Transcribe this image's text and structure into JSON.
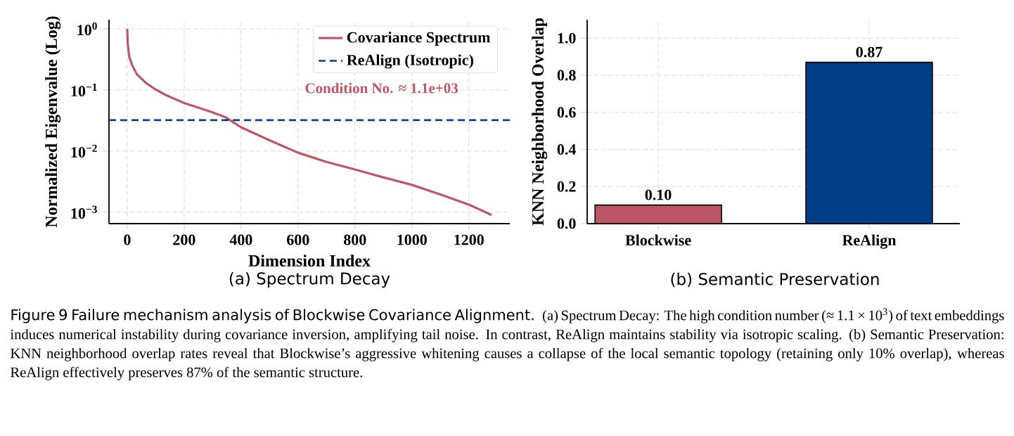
{
  "chart_data": [
    {
      "type": "line",
      "title": "(a) Spectrum Decay",
      "xlabel": "Dimension Index",
      "ylabel": "Normalized Eigenvalue (Log)",
      "series": [
        {
          "name": "Covariance Spectrum",
          "color": "#c05566",
          "x": [
            0,
            2,
            7,
            18,
            34,
            66,
            98,
            131,
            200,
            291,
            344,
            400,
            500,
            600,
            698,
            800,
            901,
            1000,
            1100,
            1200,
            1253,
            1280
          ],
          "values": [
            1.0,
            0.56,
            0.35,
            0.25,
            0.18,
            0.13,
            0.103,
            0.0845,
            0.061,
            0.0445,
            0.036,
            0.0245,
            0.015,
            0.0094,
            0.0067,
            0.005,
            0.0037,
            0.0028,
            0.00195,
            0.00133,
            0.00103,
            0.0009
          ]
        }
      ],
      "ref_lines": [
        {
          "axis": "y",
          "value": 0.032,
          "label": "ReAlign (Isotropic)",
          "color": "#0a3d86",
          "line_style": "dashed"
        }
      ],
      "annotations": [
        "Condition No. ≈ 1.1e+03"
      ],
      "log": "y",
      "xlim": [
        -64,
        1344
      ],
      "ylim": [
        0.00065,
        1.41
      ],
      "xticks": [
        0,
        200,
        400,
        600,
        800,
        1000,
        1200
      ],
      "yticks": [
        {
          "value": 1,
          "label": "10$^{0}$"
        },
        {
          "value": 0.1,
          "label": "10$^{−1}$"
        },
        {
          "value": 0.01,
          "label": "10$^{−2}$"
        },
        {
          "value": 0.001,
          "label": "10$^{−3}$"
        }
      ],
      "grid": true,
      "legend": "top right",
      "line_style": "solid",
      "marker": "none"
    },
    {
      "type": "bar",
      "title": "(b) Semantic Preservation",
      "ylabel": "KNN Neighborhood Overlap",
      "categories": [
        "Blockwise",
        "ReAlign"
      ],
      "values": [
        0.1,
        0.87
      ],
      "colors": [
        "#bc5566",
        "#003f87"
      ],
      "value_labels": [
        "0.10",
        "0.87"
      ],
      "ylim": [
        0,
        1.1
      ],
      "yticks": [
        {
          "value": 0,
          "label": "0.0"
        },
        {
          "value": 0.2,
          "label": "0.2"
        },
        {
          "value": 0.4,
          "label": "0.4"
        },
        {
          "value": 0.6,
          "label": "0.6"
        },
        {
          "value": 0.8,
          "label": "0.8"
        },
        {
          "value": 1.0,
          "label": "1.0"
        }
      ],
      "grid": true,
      "annotations": [
        "Figure 9  Failure mechanism analysis of Blockwise Covariance Alignment.",
        "(a) Spectrum Decay: The high condition number (≈ 1.1 × 10$^{3}$) of text embeddings induces numerical instability during covariance inversion, amplifying tail noise. In contrast, ReAlign maintains stability via isotropic scaling. (b) Semantic Preservation: KNN neighborhood overlap rates reveal that Blockwise’s aggressive whitening causes a collapse of the local semantic topology (retaining only 10% overlap), whereas ReAlign effectively preserves 87% of the semantic structure."
      ]
    }
  ]
}
